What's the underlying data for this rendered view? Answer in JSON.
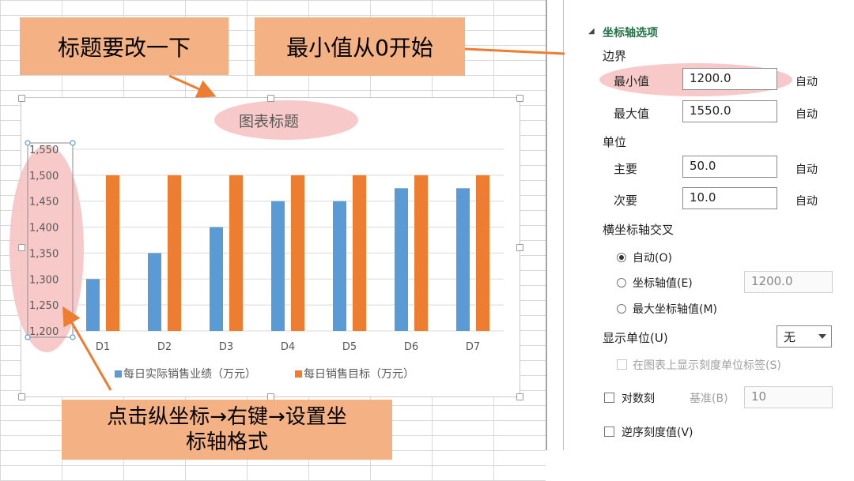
{
  "chart_data": {
    "type": "bar",
    "title": "图表标题",
    "categories": [
      "D1",
      "D2",
      "D3",
      "D4",
      "D5",
      "D6",
      "D7"
    ],
    "series": [
      {
        "name": "每日实际销售业绩（万元）",
        "color": "#5b9bd5",
        "values": [
          1300,
          1350,
          1400,
          1450,
          1450,
          1475,
          1475
        ]
      },
      {
        "name": "每日销售目标（万元）",
        "color": "#ed7d31",
        "values": [
          1500,
          1500,
          1500,
          1500,
          1500,
          1500,
          1500
        ]
      }
    ],
    "ylim": [
      1200,
      1550
    ],
    "yticks": [
      "1,550",
      "1,500",
      "1,450",
      "1,400",
      "1,350",
      "1,300",
      "1,250",
      "1,200"
    ],
    "legend": "bottom",
    "grid": true
  },
  "annotations": {
    "title_note": "标题要改一下",
    "min_note": "最小值从0开始",
    "axis_note_line1": "点击纵坐标→右键→设置坐",
    "axis_note_line2": "标轴格式"
  },
  "panel": {
    "section_title": "坐标轴选项",
    "bounds_label": "边界",
    "min_label": "最小值",
    "min_value": "1200.0",
    "max_label": "最大值",
    "max_value": "1550.0",
    "auto": "自动",
    "units_label": "单位",
    "major_label": "主要",
    "major_value": "50.0",
    "minor_label": "次要",
    "minor_value": "10.0",
    "cross_label": "横坐标轴交叉",
    "cross_auto": "自动(O)",
    "cross_value_label": "坐标轴值(E)",
    "cross_value": "1200.0",
    "cross_max": "最大坐标轴值(M)",
    "display_units_label": "显示单位(U)",
    "display_units_value": "无",
    "show_units_label": "在图表上显示刻度单位标签(S)",
    "log_label": "对数刻",
    "log_base_label": "基准(B)",
    "log_base_value": "10",
    "reverse_label": "逆序刻度值(V)"
  }
}
